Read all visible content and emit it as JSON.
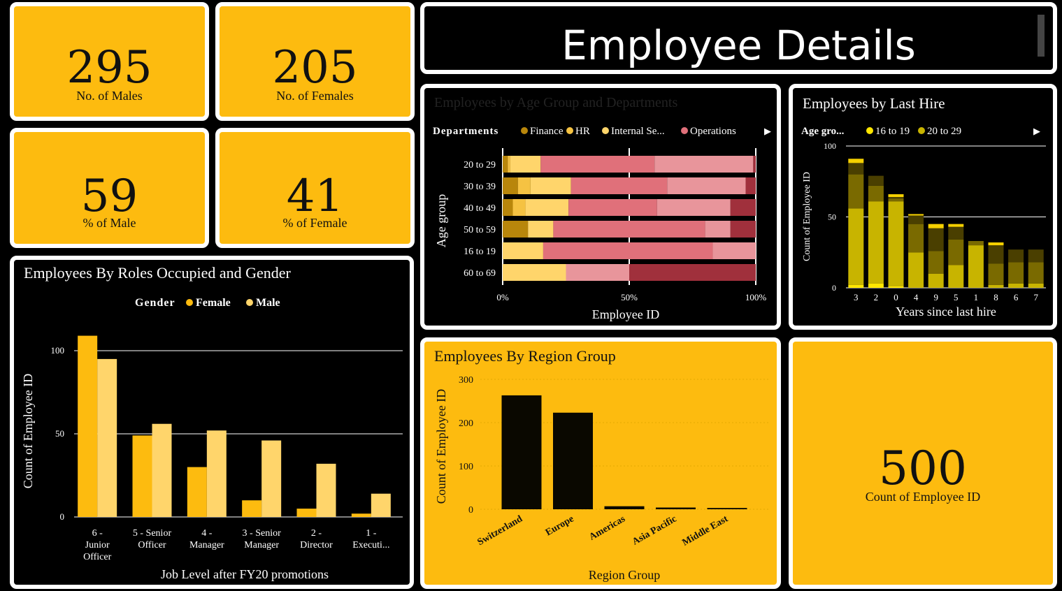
{
  "kpis": {
    "males": {
      "value": "295",
      "label": "No. of Males"
    },
    "females": {
      "value": "205",
      "label": "No. of Females"
    },
    "pct_male": {
      "value": "59",
      "label": "% of Male"
    },
    "pct_female": {
      "value": "41",
      "label": "% of Female"
    },
    "total": {
      "value": "500",
      "label": "Count of Employee ID"
    }
  },
  "page_title": "Employee Details",
  "colors": {
    "accent_yellow": "#FDBB0F",
    "background": "#000000",
    "border": "#ffffff",
    "female": "#FDBB0F",
    "male": "#FFD56B",
    "finance": "#B8860B",
    "hr": "#F5C242",
    "internal": "#FFD56B",
    "operations": "#E0707A",
    "dept5": "#E8959B",
    "dept6": "#A0303C",
    "region_bar": "#0a0800"
  },
  "chart_data": [
    {
      "id": "age_dept",
      "type": "bar",
      "orientation": "horizontal-stacked-100",
      "title": "Employees by Age Group and Departments",
      "legend_title": "Departments",
      "legend": [
        "Finance",
        "HR",
        "Internal Se...",
        "Operations"
      ],
      "categories": [
        "20 to 29",
        "30 to 39",
        "40 to 49",
        "50 to 59",
        "16 to 19",
        "60 to 69"
      ],
      "series": [
        {
          "name": "Finance",
          "values": [
            2,
            6,
            4,
            10,
            0,
            0
          ]
        },
        {
          "name": "HR",
          "values": [
            1,
            5,
            5,
            0,
            0,
            0
          ]
        },
        {
          "name": "Internal Se...",
          "values": [
            12,
            16,
            17,
            10,
            16,
            25
          ]
        },
        {
          "name": "Operations",
          "values": [
            45,
            38,
            35,
            60,
            67,
            0
          ]
        },
        {
          "values": [
            39,
            31,
            29,
            10,
            17,
            25
          ]
        },
        {
          "values": [
            1,
            4,
            10,
            10,
            0,
            50
          ]
        }
      ],
      "xlabel": "Employee ID",
      "ylabel": "Age group",
      "xticks": [
        "0%",
        "50%",
        "100%"
      ]
    },
    {
      "id": "last_hire",
      "type": "bar",
      "orientation": "vertical-stacked",
      "title": "Employees by Last Hire",
      "legend_title": "Age gro...",
      "legend": [
        "16 to 19",
        "20 to 29"
      ],
      "categories": [
        "3",
        "2",
        "0",
        "4",
        "9",
        "5",
        "1",
        "8",
        "6",
        "7"
      ],
      "series": [
        {
          "name": "16 to 19",
          "values": [
            2,
            3,
            1,
            0,
            0,
            0,
            0,
            0,
            0,
            0
          ]
        },
        {
          "name": "20 to 29",
          "values": [
            54,
            58,
            60,
            25,
            10,
            16,
            30,
            2,
            3,
            3
          ]
        },
        {
          "values": [
            24,
            11,
            2,
            20,
            16,
            18,
            3,
            15,
            15,
            15
          ]
        },
        {
          "values": [
            8,
            7,
            1,
            6,
            16,
            9,
            0,
            13,
            9,
            9
          ]
        },
        {
          "values": [
            3,
            0,
            2,
            1,
            3,
            2,
            0,
            2,
            0,
            0
          ]
        }
      ],
      "xlabel": "Years since last hire",
      "ylabel": "Count of Employee ID",
      "yticks": [
        0,
        50,
        100
      ],
      "ylim": [
        0,
        100
      ]
    },
    {
      "id": "roles_gender",
      "type": "bar",
      "orientation": "vertical-grouped",
      "title": "Employees By Roles Occupied and Gender",
      "legend_title": "Gender",
      "legend": [
        "Female",
        "Male"
      ],
      "categories": [
        [
          "6 -",
          "Junior",
          "Officer"
        ],
        [
          "5 - Senior",
          "Officer"
        ],
        [
          "4 -",
          "Manager"
        ],
        [
          "3 - Senior",
          "Manager"
        ],
        [
          "2 -",
          "Director"
        ],
        [
          "1 -",
          "Executi..."
        ]
      ],
      "series": [
        {
          "name": "Female",
          "values": [
            109,
            49,
            30,
            10,
            5,
            2
          ]
        },
        {
          "name": "Male",
          "values": [
            95,
            56,
            52,
            46,
            32,
            14
          ]
        }
      ],
      "xlabel": "Job Level after FY20 promotions",
      "ylabel": "Count of Employee ID",
      "yticks": [
        0,
        50,
        100
      ],
      "ylim": [
        0,
        125
      ]
    },
    {
      "id": "region",
      "type": "bar",
      "orientation": "vertical",
      "title": "Employees By Region Group",
      "categories": [
        "Switzerland",
        "Europe",
        "Americas",
        "Asia Pacific",
        "Middle East"
      ],
      "values": [
        263,
        223,
        7,
        4,
        3
      ],
      "xlabel": "Region Group",
      "ylabel": "Count of Employee ID",
      "yticks": [
        0,
        100,
        200,
        300
      ],
      "ylim": [
        0,
        300
      ]
    }
  ]
}
